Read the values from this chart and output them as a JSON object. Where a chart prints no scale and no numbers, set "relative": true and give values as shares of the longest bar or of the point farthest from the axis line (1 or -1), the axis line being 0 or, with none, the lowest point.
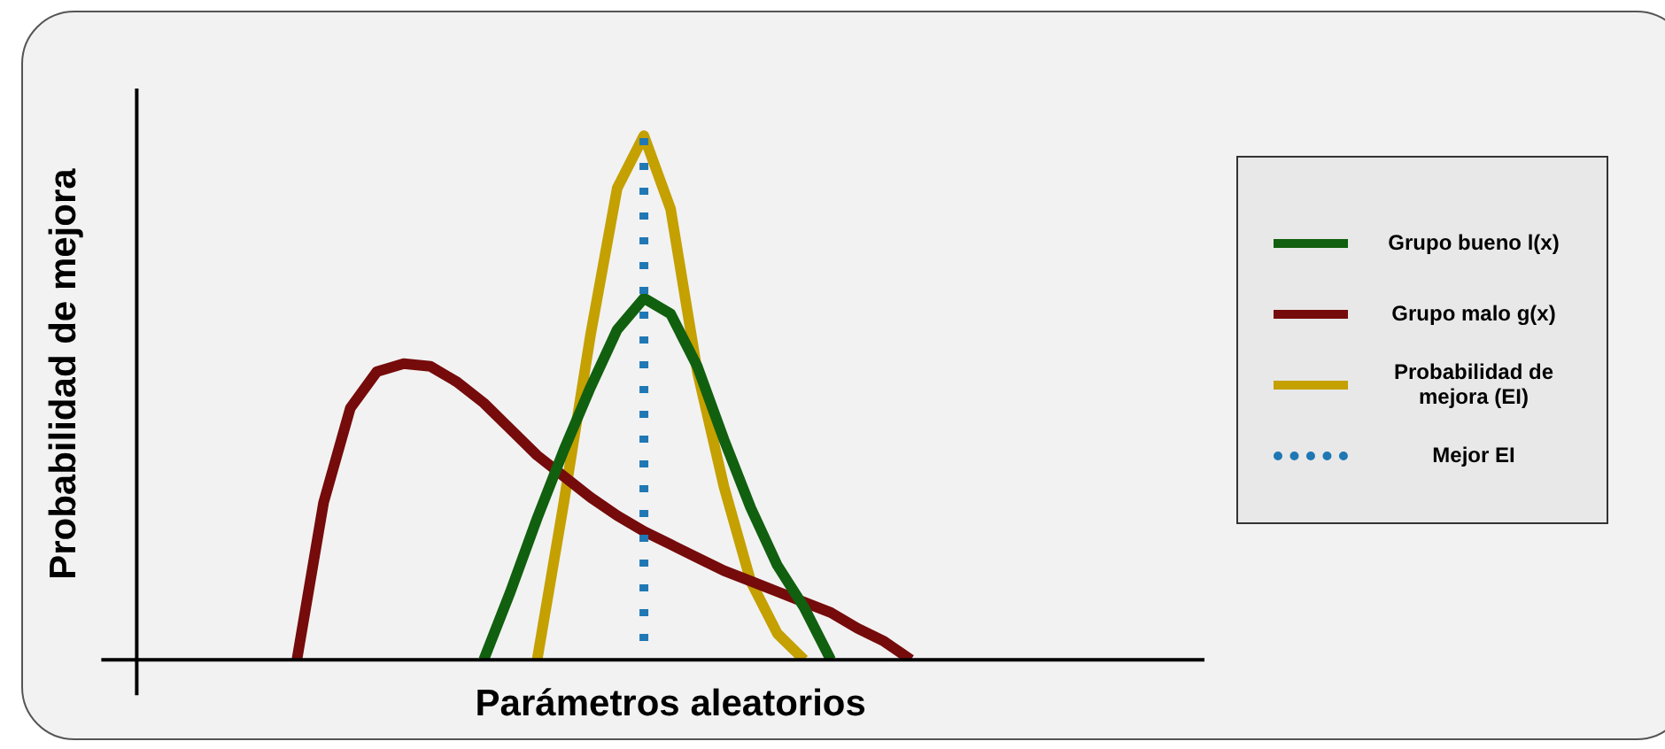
{
  "chart_data": {
    "type": "line",
    "relative": true,
    "xlabel": "Parámetros aleatorios",
    "ylabel": "Probabilidad de mejora",
    "legend": "right",
    "marker": "none",
    "line_style": "solid",
    "categories": [
      null,
      null,
      null,
      null,
      null,
      null,
      null,
      null,
      null,
      null,
      null,
      null,
      null,
      null,
      null,
      null,
      null,
      null,
      null,
      null,
      null,
      null,
      null,
      null,
      null,
      null,
      null,
      null,
      null,
      null,
      null,
      null,
      null,
      null,
      null,
      null,
      null,
      null,
      null,
      null,
      null
    ],
    "series": [
      {
        "name": "Grupo bueno l(x)",
        "color": "#11600f",
        "values": [
          null,
          null,
          null,
          null,
          null,
          null,
          null,
          null,
          null,
          null,
          null,
          null,
          null,
          0,
          0.13,
          0.27,
          0.4,
          0.52,
          0.63,
          0.69,
          0.66,
          0.56,
          0.42,
          0.29,
          0.18,
          0.1,
          0,
          null,
          null,
          null,
          null,
          null,
          null,
          null,
          null,
          null,
          null,
          null,
          null,
          null,
          null
        ]
      },
      {
        "name": "Grupo malo g(x)",
        "color": "#760b0b",
        "values": [
          null,
          null,
          null,
          null,
          null,
          null,
          0,
          0.3,
          0.48,
          0.55,
          0.565,
          0.56,
          0.53,
          0.49,
          0.44,
          0.39,
          0.35,
          0.31,
          0.275,
          0.245,
          0.22,
          0.195,
          0.17,
          0.15,
          0.13,
          0.11,
          0.09,
          0.06,
          0.035,
          0,
          null,
          null,
          null,
          null,
          null,
          null,
          null,
          null,
          null,
          null,
          null
        ]
      },
      {
        "name": "Probabilidad de mejora (EI)",
        "color": "#c4a000",
        "values": [
          null,
          null,
          null,
          null,
          null,
          null,
          null,
          null,
          null,
          null,
          null,
          null,
          null,
          null,
          null,
          0,
          0.3,
          0.62,
          0.9,
          1,
          0.86,
          0.55,
          0.33,
          0.15,
          0.05,
          0,
          null,
          null,
          null,
          null,
          null,
          null,
          null,
          null,
          null,
          null,
          null,
          null,
          null,
          null,
          null
        ]
      }
    ],
    "annotations": [
      "Mejor EI"
    ]
  }
}
